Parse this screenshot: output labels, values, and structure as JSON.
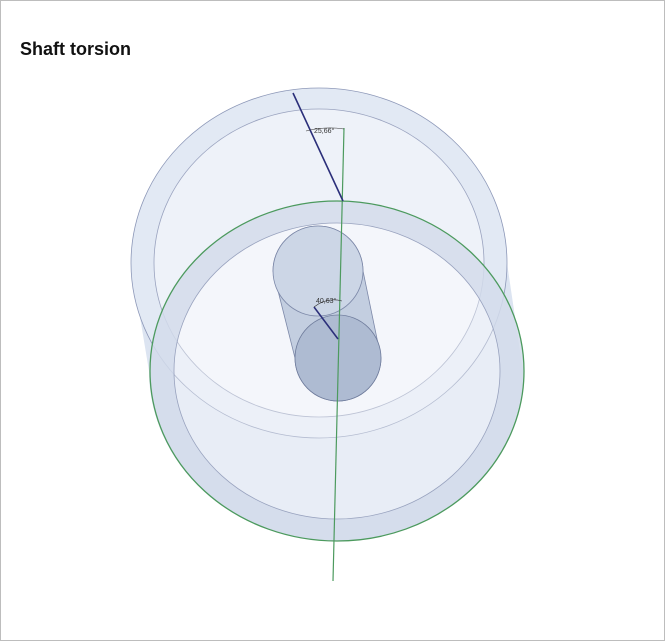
{
  "title": "Shaft torsion",
  "annotations": [
    "25,66°",
    "40,63°"
  ]
}
